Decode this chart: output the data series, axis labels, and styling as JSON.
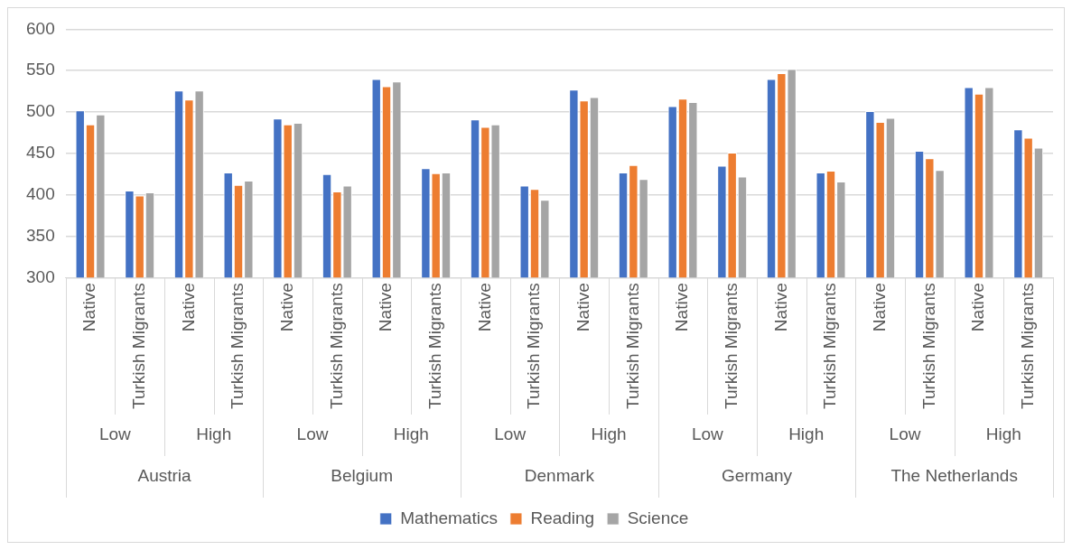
{
  "chart_data": {
    "type": "bar",
    "categories": [
      "Native",
      "Turkish Migrants",
      "Native",
      "Turkish Migrants",
      "Native",
      "Turkish Migrants",
      "Native",
      "Turkish Migrants",
      "Native",
      "Turkish Migrants",
      "Native",
      "Turkish Migrants",
      "Native",
      "Turkish Migrants",
      "Native",
      "Turkish Migrants",
      "Native",
      "Turkish Migrants",
      "Native",
      "Turkish Migrants"
    ],
    "series": [
      {
        "name": "Mathematics",
        "color": "#4472c4",
        "values": [
          502,
          405,
          526,
          427,
          492,
          425,
          540,
          432,
          491,
          411,
          527,
          427,
          507,
          435,
          540,
          427,
          501,
          453,
          530,
          479
        ]
      },
      {
        "name": "Reading",
        "color": "#ed7d31",
        "values": [
          485,
          399,
          515,
          412,
          485,
          404,
          531,
          426,
          482,
          407,
          514,
          436,
          516,
          451,
          547,
          429,
          488,
          444,
          522,
          469
        ]
      },
      {
        "name": "Science",
        "color": "#a5a5a5",
        "values": [
          497,
          403,
          526,
          417,
          487,
          411,
          537,
          427,
          485,
          394,
          518,
          419,
          512,
          422,
          552,
          416,
          493,
          430,
          530,
          457
        ]
      }
    ],
    "annotations": [
      "Low",
      "High",
      "Low",
      "High",
      "Low",
      "High",
      "Low",
      "High",
      "Low",
      "High",
      "Austria",
      "Belgium",
      "Denmark",
      "Germany",
      "The Netherlands"
    ],
    "ylim": [
      300,
      600
    ],
    "yticks": [
      300,
      350,
      400,
      450,
      500,
      550,
      600
    ],
    "grid": "y",
    "legend": "bottom"
  }
}
